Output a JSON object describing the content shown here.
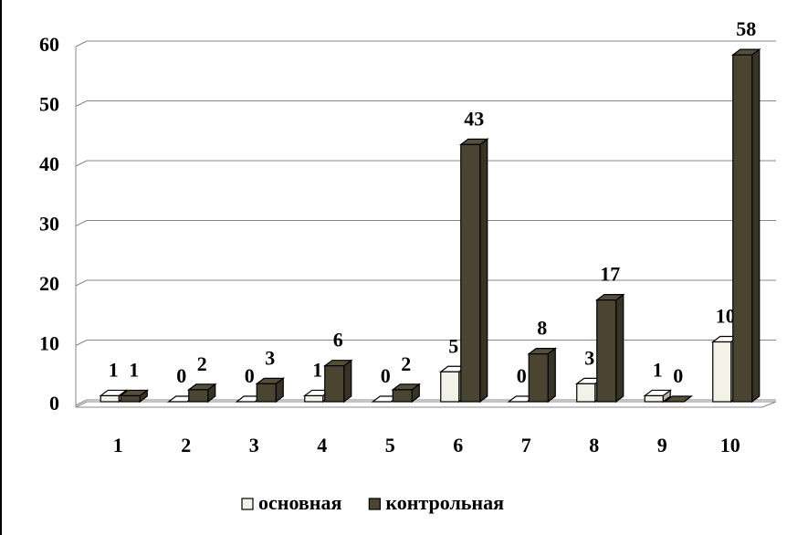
{
  "chart_data": {
    "type": "bar3d",
    "categories": [
      "1",
      "2",
      "3",
      "4",
      "5",
      "6",
      "7",
      "8",
      "9",
      "10"
    ],
    "series": [
      {
        "name": "основная",
        "color": "#f2f2e6",
        "values": [
          1,
          0,
          0,
          1,
          0,
          5,
          0,
          3,
          1,
          10
        ]
      },
      {
        "name": "контрольная",
        "color": "#4a4431",
        "values": [
          1,
          2,
          3,
          6,
          2,
          43,
          8,
          17,
          0,
          58
        ]
      }
    ],
    "ylim": [
      0,
      60
    ],
    "yticks": [
      0,
      10,
      20,
      30,
      40,
      50,
      60
    ],
    "grid": true,
    "legend": "bottom"
  }
}
